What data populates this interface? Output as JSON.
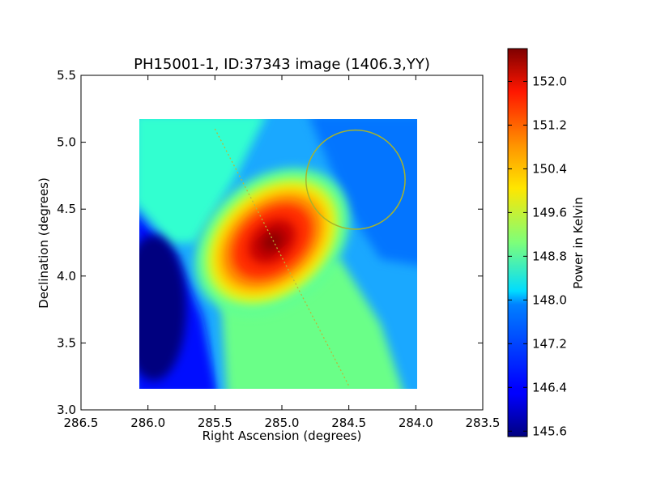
{
  "chart_data": {
    "type": "heatmap",
    "title": "PH15001-1, ID:37343 image (1406.3,YY)",
    "xlabel": "Right Ascension (degrees)",
    "ylabel": "Declination (degrees)",
    "xlim": [
      286.5,
      283.5
    ],
    "ylim": [
      3.0,
      5.5
    ],
    "x_ticks": [
      "286.5",
      "286.0",
      "285.5",
      "285.0",
      "284.5",
      "284.0",
      "283.5"
    ],
    "y_ticks": [
      "3.0",
      "3.5",
      "4.0",
      "4.5",
      "5.0",
      "5.5"
    ],
    "grid": false,
    "image_extent": {
      "ra": [
        286.07,
        283.99
      ],
      "dec": [
        3.16,
        5.17
      ]
    },
    "colormap": "jet",
    "value_range": [
      145.5,
      152.6
    ],
    "peak": {
      "ra": 285.1,
      "dec": 4.2,
      "value": 152.5
    },
    "minimum": {
      "ra": 286.0,
      "dec": 3.7,
      "value": 145.6
    },
    "beam_circle": {
      "ra": 284.45,
      "dec": 4.72,
      "radius_deg": 0.37,
      "color": "#a8b42a"
    },
    "scan_track": {
      "ra": [
        285.5,
        284.5
      ],
      "dec": [
        5.1,
        3.18
      ],
      "color": "#b8b83a"
    },
    "colorbar": {
      "label": "Power in Kelvin",
      "ticks": [
        "145.6",
        "146.4",
        "147.2",
        "148.0",
        "148.8",
        "149.6",
        "150.4",
        "151.2",
        "152.0"
      ]
    }
  }
}
